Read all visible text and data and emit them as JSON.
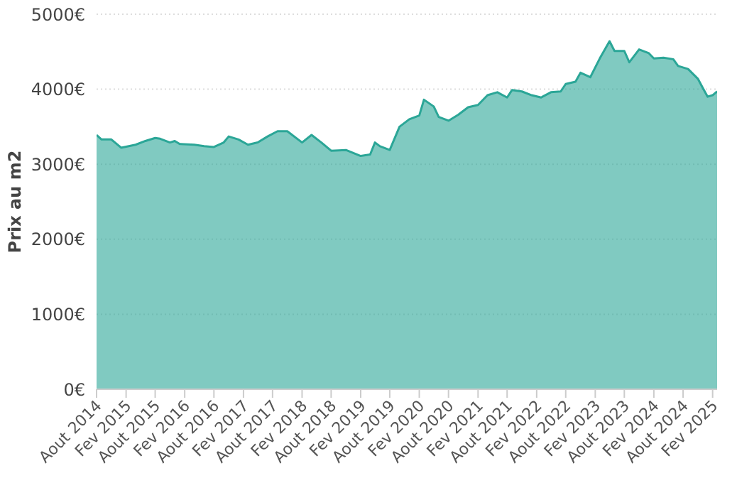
{
  "chart_data": {
    "type": "area",
    "ylabel": "Prix au m2",
    "x": [
      "2014-08",
      "2014-09",
      "2014-11",
      "2015-01",
      "2015-04",
      "2015-06",
      "2015-08",
      "2015-09",
      "2015-11",
      "2015-12",
      "2016-01",
      "2016-04",
      "2016-06",
      "2016-08",
      "2016-10",
      "2016-11",
      "2017-01",
      "2017-03",
      "2017-05",
      "2017-07",
      "2017-09",
      "2017-11",
      "2018-02",
      "2018-04",
      "2018-06",
      "2018-08",
      "2018-11",
      "2019-02",
      "2019-04",
      "2019-05",
      "2019-06",
      "2019-08",
      "2019-10",
      "2019-12",
      "2020-02",
      "2020-03",
      "2020-05",
      "2020-06",
      "2020-08",
      "2020-10",
      "2020-12",
      "2021-02",
      "2021-04",
      "2021-06",
      "2021-08",
      "2021-09",
      "2021-11",
      "2022-01",
      "2022-03",
      "2022-05",
      "2022-07",
      "2022-08",
      "2022-10",
      "2022-11",
      "2023-01",
      "2023-03",
      "2023-05",
      "2023-06",
      "2023-08",
      "2023-09",
      "2023-11",
      "2024-01",
      "2024-02",
      "2024-04",
      "2024-06",
      "2024-07",
      "2024-09",
      "2024-11",
      "2024-12",
      "2025-01",
      "2025-02",
      "2025-03"
    ],
    "series": [
      {
        "color": "#2ba697",
        "values": [
          3390,
          3330,
          3330,
          3220,
          3260,
          3310,
          3350,
          3340,
          3290,
          3310,
          3270,
          3260,
          3240,
          3230,
          3290,
          3370,
          3330,
          3260,
          3290,
          3370,
          3440,
          3440,
          3290,
          3390,
          3290,
          3180,
          3190,
          3110,
          3130,
          3290,
          3240,
          3190,
          3500,
          3600,
          3650,
          3860,
          3770,
          3630,
          3580,
          3660,
          3760,
          3790,
          3920,
          3960,
          3890,
          3990,
          3970,
          3920,
          3890,
          3960,
          3970,
          4070,
          4100,
          4220,
          4160,
          4410,
          4640,
          4510,
          4510,
          4360,
          4530,
          4480,
          4410,
          4420,
          4400,
          4310,
          4270,
          4140,
          4020,
          3900,
          3920,
          3970
        ]
      }
    ],
    "ylim": [
      0,
      5000
    ],
    "yticks": [
      {
        "value": 0,
        "label": "0€"
      },
      {
        "value": 1000,
        "label": "1000€"
      },
      {
        "value": 2000,
        "label": "2000€"
      },
      {
        "value": 3000,
        "label": "3000€"
      },
      {
        "value": 4000,
        "label": "4000€"
      },
      {
        "value": 5000,
        "label": "5000€"
      }
    ],
    "xlim": [
      "2014-08",
      "2025-03"
    ],
    "xticks": [
      {
        "value": "2014-08",
        "label": "Aout 2014"
      },
      {
        "value": "2015-02",
        "label": "Fev 2015"
      },
      {
        "value": "2015-08",
        "label": "Aout 2015"
      },
      {
        "value": "2016-02",
        "label": "Fev 2016"
      },
      {
        "value": "2016-08",
        "label": "Aout 2016"
      },
      {
        "value": "2017-02",
        "label": "Fev 2017"
      },
      {
        "value": "2017-08",
        "label": "Aout 2017"
      },
      {
        "value": "2018-02",
        "label": "Fev 2018"
      },
      {
        "value": "2018-08",
        "label": "Aout 2018"
      },
      {
        "value": "2019-02",
        "label": "Fev 2019"
      },
      {
        "value": "2019-08",
        "label": "Aout 2019"
      },
      {
        "value": "2020-02",
        "label": "Fev 2020"
      },
      {
        "value": "2020-08",
        "label": "Aout 2020"
      },
      {
        "value": "2021-02",
        "label": "Fev 2021"
      },
      {
        "value": "2021-08",
        "label": "Aout 2021"
      },
      {
        "value": "2022-02",
        "label": "Fev 2022"
      },
      {
        "value": "2022-08",
        "label": "Aout 2022"
      },
      {
        "value": "2023-02",
        "label": "Fev 2023"
      },
      {
        "value": "2023-08",
        "label": "Aout 2023"
      },
      {
        "value": "2024-02",
        "label": "Fev 2024"
      },
      {
        "value": "2024-08",
        "label": "Aout 2024"
      },
      {
        "value": "2025-02",
        "label": "Fev 2025"
      }
    ],
    "grid": "y",
    "legend": false
  }
}
